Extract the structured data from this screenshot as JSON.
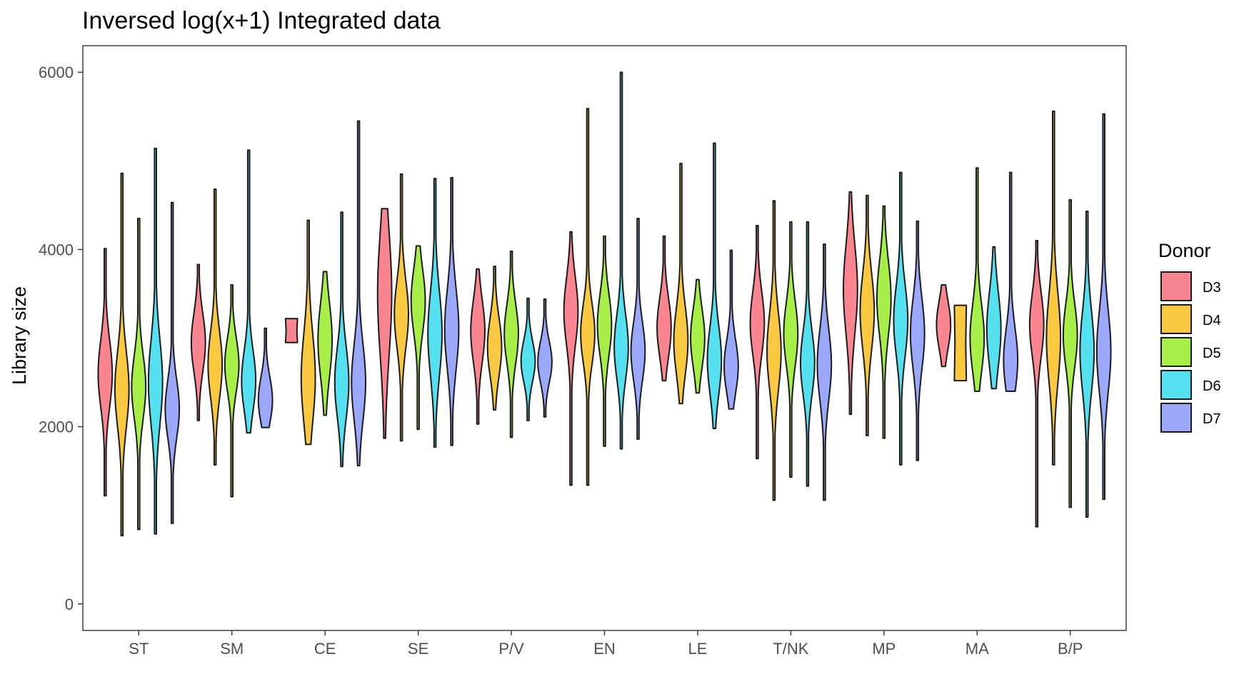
{
  "chart_data": {
    "type": "violin",
    "title": "Inversed log(x+1) Integrated data",
    "xlabel": "",
    "ylabel": "Library size",
    "ylim": [
      -300,
      6300
    ],
    "yticks": [
      0,
      2000,
      4000,
      6000
    ],
    "categories": [
      "ST",
      "SM",
      "CE",
      "SE",
      "P/V",
      "EN",
      "LE",
      "T/NK",
      "MP",
      "MA",
      "B/P"
    ],
    "legend": {
      "title": "Donor",
      "position": "right"
    },
    "grid": false,
    "series": [
      {
        "name": "D3",
        "color": "#F8858F",
        "values": [
          {
            "min": 1220,
            "max": 4010,
            "mode": 2600,
            "spread": 380
          },
          {
            "min": 2070,
            "max": 3830,
            "mode": 2950,
            "spread": 330
          },
          {
            "min": 2950,
            "max": 3220,
            "mode": 3050,
            "spread": 150,
            "shape": "box"
          },
          {
            "min": 1870,
            "max": 4460,
            "mode": 3500,
            "spread": 700
          },
          {
            "min": 2030,
            "max": 3780,
            "mode": 3080,
            "spread": 350
          },
          {
            "min": 1340,
            "max": 4200,
            "mode": 3300,
            "spread": 380
          },
          {
            "min": 2520,
            "max": 4150,
            "mode": 3120,
            "spread": 330
          },
          {
            "min": 1640,
            "max": 4270,
            "mode": 3170,
            "spread": 360
          },
          {
            "min": 2140,
            "max": 4650,
            "mode": 3550,
            "spread": 500
          },
          {
            "min": 2680,
            "max": 3600,
            "mode": 3150,
            "spread": 270
          },
          {
            "min": 870,
            "max": 4100,
            "mode": 3150,
            "spread": 360
          }
        ]
      },
      {
        "name": "D4",
        "color": "#F8C840",
        "values": [
          {
            "min": 770,
            "max": 4860,
            "mode": 2420,
            "spread": 420
          },
          {
            "min": 1570,
            "max": 4680,
            "mode": 2700,
            "spread": 380
          },
          {
            "min": 1800,
            "max": 4330,
            "mode": 2550,
            "spread": 500
          },
          {
            "min": 1840,
            "max": 4850,
            "mode": 3270,
            "spread": 380
          },
          {
            "min": 2190,
            "max": 3810,
            "mode": 2900,
            "spread": 330
          },
          {
            "min": 1340,
            "max": 5590,
            "mode": 3050,
            "spread": 330
          },
          {
            "min": 2260,
            "max": 4970,
            "mode": 2970,
            "spread": 380
          },
          {
            "min": 1170,
            "max": 4550,
            "mode": 2850,
            "spread": 430
          },
          {
            "min": 1900,
            "max": 4610,
            "mode": 3300,
            "spread": 430
          },
          {
            "min": 2520,
            "max": 3370,
            "mode": 2950,
            "spread": 350,
            "shape": "box"
          },
          {
            "min": 1570,
            "max": 5560,
            "mode": 3000,
            "spread": 500
          }
        ]
      },
      {
        "name": "D5",
        "color": "#A8EE48",
        "values": [
          {
            "min": 840,
            "max": 4350,
            "mode": 2450,
            "spread": 360
          },
          {
            "min": 1210,
            "max": 3600,
            "mode": 2700,
            "spread": 300
          },
          {
            "min": 2130,
            "max": 3750,
            "mode": 2980,
            "spread": 420
          },
          {
            "min": 1970,
            "max": 4040,
            "mode": 3420,
            "spread": 360
          },
          {
            "min": 1880,
            "max": 3980,
            "mode": 3050,
            "spread": 330
          },
          {
            "min": 1780,
            "max": 4150,
            "mode": 3150,
            "spread": 350
          },
          {
            "min": 2380,
            "max": 3660,
            "mode": 3000,
            "spread": 330
          },
          {
            "min": 1430,
            "max": 4310,
            "mode": 3050,
            "spread": 360
          },
          {
            "min": 1870,
            "max": 4490,
            "mode": 3450,
            "spread": 420
          },
          {
            "min": 2400,
            "max": 4920,
            "mode": 3000,
            "spread": 380
          },
          {
            "min": 1090,
            "max": 4560,
            "mode": 3030,
            "spread": 360
          }
        ]
      },
      {
        "name": "D6",
        "color": "#55E0F0",
        "values": [
          {
            "min": 790,
            "max": 5140,
            "mode": 2500,
            "spread": 480
          },
          {
            "min": 1930,
            "max": 5120,
            "mode": 2520,
            "spread": 340
          },
          {
            "min": 1550,
            "max": 4420,
            "mode": 2500,
            "spread": 400
          },
          {
            "min": 1770,
            "max": 4800,
            "mode": 3050,
            "spread": 480
          },
          {
            "min": 2070,
            "max": 3450,
            "mode": 2740,
            "spread": 230
          },
          {
            "min": 1750,
            "max": 6000,
            "mode": 2900,
            "spread": 360
          },
          {
            "min": 1980,
            "max": 5200,
            "mode": 2750,
            "spread": 380
          },
          {
            "min": 1330,
            "max": 4310,
            "mode": 2720,
            "spread": 360
          },
          {
            "min": 1570,
            "max": 4870,
            "mode": 3200,
            "spread": 400
          },
          {
            "min": 2430,
            "max": 4030,
            "mode": 3100,
            "spread": 420
          },
          {
            "min": 980,
            "max": 4430,
            "mode": 2850,
            "spread": 460
          }
        ]
      },
      {
        "name": "D7",
        "color": "#9BA7F8",
        "values": [
          {
            "min": 910,
            "max": 4530,
            "mode": 2200,
            "spread": 330
          },
          {
            "min": 1990,
            "max": 3110,
            "mode": 2300,
            "spread": 260
          },
          {
            "min": 1560,
            "max": 5450,
            "mode": 2500,
            "spread": 430
          },
          {
            "min": 1790,
            "max": 4810,
            "mode": 3100,
            "spread": 450
          },
          {
            "min": 2110,
            "max": 3440,
            "mode": 2730,
            "spread": 230
          },
          {
            "min": 1860,
            "max": 4350,
            "mode": 2850,
            "spread": 330
          },
          {
            "min": 2200,
            "max": 3990,
            "mode": 2680,
            "spread": 300
          },
          {
            "min": 1170,
            "max": 4060,
            "mode": 2700,
            "spread": 400
          },
          {
            "min": 1620,
            "max": 4320,
            "mode": 3050,
            "spread": 400
          },
          {
            "min": 2400,
            "max": 4870,
            "mode": 2750,
            "spread": 360
          },
          {
            "min": 1180,
            "max": 5530,
            "mode": 2850,
            "spread": 460
          }
        ]
      }
    ]
  }
}
